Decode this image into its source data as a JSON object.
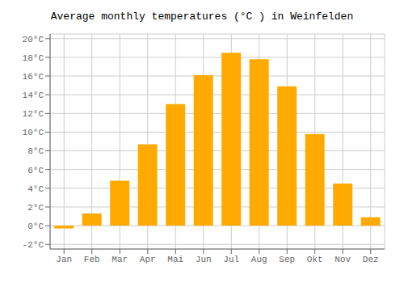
{
  "chart_data": {
    "type": "bar",
    "title": "Average monthly temperatures (°C ) in Weinfelden",
    "categories": [
      "Jan",
      "Feb",
      "Mar",
      "Apr",
      "Mai",
      "Jun",
      "Jul",
      "Aug",
      "Sep",
      "Okt",
      "Nov",
      "Dez"
    ],
    "values": [
      -0.3,
      1.3,
      4.8,
      8.7,
      13.0,
      16.1,
      18.5,
      17.8,
      14.9,
      9.8,
      4.5,
      0.9
    ],
    "color": "#FFAA00",
    "ylim": [
      -2.5,
      20.5
    ],
    "yticks": [
      {
        "value": -2,
        "label": "-2°C"
      },
      {
        "value": 0,
        "label": "0°C"
      },
      {
        "value": 2,
        "label": "2°C"
      },
      {
        "value": 4,
        "label": "4°C"
      },
      {
        "value": 6,
        "label": "6°C"
      },
      {
        "value": 8,
        "label": "8°C"
      },
      {
        "value": 10,
        "label": "10°C"
      },
      {
        "value": 12,
        "label": "12°C"
      },
      {
        "value": 14,
        "label": "14°C"
      },
      {
        "value": 16,
        "label": "16°C"
      },
      {
        "value": 18,
        "label": "18°C"
      },
      {
        "value": 20,
        "label": "20°C"
      }
    ],
    "grid": true
  }
}
